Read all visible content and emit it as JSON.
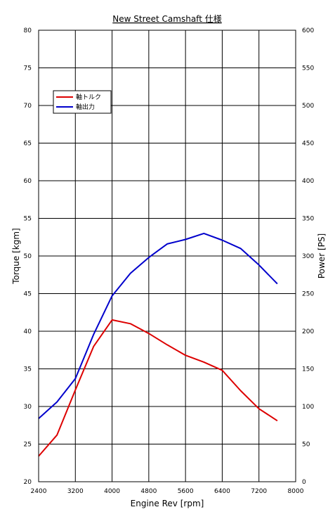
{
  "chart_data": {
    "type": "line",
    "title": "New Street Camshaft 仕様",
    "xlabel": "Engine Rev [rpm]",
    "ylabel_left": "Torque [kgm]",
    "ylabel_right": "Power [PS]",
    "xlim": [
      2400,
      8000
    ],
    "ylim_left": [
      20,
      80
    ],
    "ylim_right": [
      0,
      600
    ],
    "x_ticks": [
      "2400",
      "3200",
      "4000",
      "4800",
      "5600",
      "6400",
      "7200",
      "8000"
    ],
    "y_left_ticks": [
      "20",
      "25",
      "30",
      "35",
      "40",
      "45",
      "50",
      "55",
      "60",
      "65",
      "70",
      "75",
      "80"
    ],
    "y_right_ticks": [
      "0",
      "50",
      "100",
      "150",
      "200",
      "250",
      "300",
      "350",
      "400",
      "450",
      "500",
      "550",
      "600"
    ],
    "grid": true,
    "legend_position": "upper-left",
    "series": [
      {
        "name": "軸トルク",
        "axis": "left",
        "color": "#dd0000",
        "x": [
          2400,
          2800,
          3200,
          3600,
          4000,
          4400,
          4800,
          5200,
          5600,
          6000,
          6400,
          6800,
          7200,
          7600
        ],
        "y": [
          23.4,
          26.2,
          32.2,
          38.0,
          41.5,
          41.0,
          39.7,
          38.2,
          36.8,
          35.9,
          34.8,
          32.1,
          29.7,
          28.1
        ]
      },
      {
        "name": "軸出力",
        "axis": "right",
        "color": "#0000cc",
        "x": [
          2400,
          2800,
          3200,
          3600,
          4000,
          4400,
          4800,
          5200,
          5600,
          6000,
          6400,
          6800,
          7200,
          7600
        ],
        "y": [
          84,
          106,
          137,
          196,
          247,
          277,
          298,
          316,
          322,
          330,
          321,
          310,
          288,
          263
        ]
      }
    ]
  }
}
